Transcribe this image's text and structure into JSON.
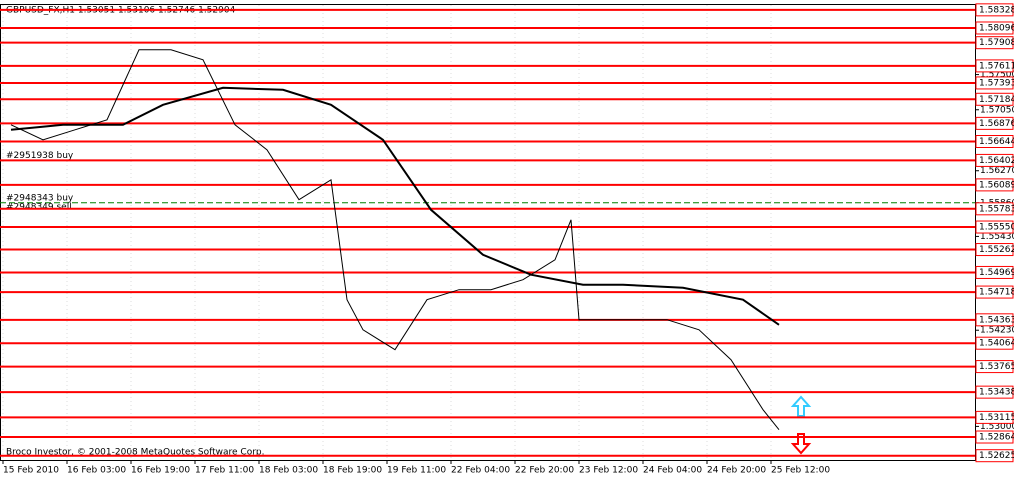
{
  "chart_data": {
    "type": "line",
    "title": "GBPUSD_FX,H1  1.53051 1.53106 1.52746 1.52904",
    "footer": "Broco Investor, © 2001-2008 MetaQuotes Software Corp.",
    "orders": [
      {
        "label": "#2951938 buy",
        "value": 1.56402
      },
      {
        "label": "#2948343 buy",
        "value": 1.5586
      },
      {
        "label": "#2948349 sell",
        "value": 1.55783
      }
    ],
    "levels": [
      1.58328,
      1.58096,
      1.57908,
      1.57611,
      1.57393,
      1.57184,
      1.56876,
      1.56644,
      1.56402,
      1.56089,
      1.55783,
      {
        "value": 1.5555,
        "label": "1.55550"
      },
      1.55262,
      1.54969,
      1.54718,
      1.54363,
      1.54064,
      1.53765,
      1.53438,
      1.53115,
      1.52864,
      1.52625
    ],
    "level_color": "#ff0000",
    "ylim": [
      1.5257,
      1.5839
    ],
    "yticks": [
      {
        "value": 1.575,
        "label": "1.57500"
      },
      {
        "value": 1.5705,
        "label": "1.57050"
      },
      {
        "value": 1.5627,
        "label": "1.56270"
      },
      {
        "value": 1.5586,
        "label": "1.55860"
      },
      {
        "value": 1.5543,
        "label": "1.55430"
      },
      {
        "value": 1.5423,
        "label": "1.54230"
      },
      {
        "value": 1.53,
        "label": "1.53000"
      }
    ],
    "xlim": [
      -0.75,
      243
    ],
    "xticks": [
      {
        "value": 0,
        "label": "15 Feb 2010"
      },
      {
        "value": 16,
        "label": "16 Feb 03:00"
      },
      {
        "value": 32,
        "label": "16 Feb 19:00"
      },
      {
        "value": 48,
        "label": "17 Feb 11:00"
      },
      {
        "value": 64,
        "label": "18 Feb 03:00"
      },
      {
        "value": 80,
        "label": "18 Feb 19:00"
      },
      {
        "value": 96,
        "label": "19 Feb 11:00"
      },
      {
        "value": 112,
        "label": "22 Feb 04:00"
      },
      {
        "value": 128,
        "label": "22 Feb 20:00"
      },
      {
        "value": 144,
        "label": "23 Feb 12:00"
      },
      {
        "value": 160,
        "label": "24 Feb 04:00"
      },
      {
        "value": 176,
        "label": "24 Feb 20:00"
      },
      {
        "value": 192,
        "label": "25 Feb 12:00"
      }
    ],
    "grid": true,
    "series": [
      {
        "color": "#000000",
        "x": [
          2,
          10,
          18,
          26,
          34,
          42,
          50,
          58,
          66,
          74,
          82,
          86,
          90,
          98,
          106,
          114,
          122,
          130,
          138,
          142,
          144,
          150,
          158,
          166,
          174,
          182,
          190,
          194
        ],
        "values": [
          1.56858,
          1.56666,
          1.56794,
          1.56922,
          1.57817,
          1.57817,
          1.57689,
          1.56858,
          1.56538,
          1.55899,
          1.56154,
          1.5462,
          1.54236,
          1.53981,
          1.5462,
          1.54748,
          1.54748,
          1.54876,
          1.55131,
          1.55643,
          1.54364,
          1.54364,
          1.54364,
          1.54364,
          1.54236,
          1.53853,
          1.53214,
          1.52958
        ]
      },
      {
        "color": "#000000",
        "x": [
          2,
          15,
          30,
          40,
          55,
          70,
          82,
          95,
          107,
          120,
          132,
          145,
          155,
          170,
          185,
          194
        ],
        "values": [
          1.56794,
          1.56858,
          1.56858,
          1.57113,
          1.57331,
          1.57305,
          1.57113,
          1.56666,
          1.55771,
          1.55195,
          1.5494,
          1.54812,
          1.54812,
          1.54773,
          1.5462,
          1.543
        ]
      }
    ]
  }
}
